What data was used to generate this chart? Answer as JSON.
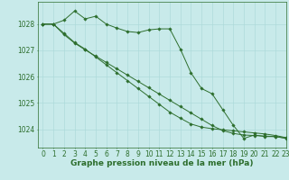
{
  "title": "Graphe pression niveau de la mer (hPa)",
  "background_color": "#c8eaea",
  "grid_color": "#a8d8d8",
  "line_color": "#2d6e2d",
  "title_fontsize": 6.5,
  "tick_fontsize": 5.5,
  "xlim": [
    -0.5,
    23
  ],
  "ylim": [
    1023.3,
    1028.85
  ],
  "yticks": [
    1024,
    1025,
    1026,
    1027,
    1028
  ],
  "xticks": [
    0,
    1,
    2,
    3,
    4,
    5,
    6,
    7,
    8,
    9,
    10,
    11,
    12,
    13,
    14,
    15,
    16,
    17,
    18,
    19,
    20,
    21,
    22,
    23
  ],
  "series1": [
    1028.0,
    1028.0,
    1028.15,
    1028.5,
    1028.2,
    1028.3,
    1028.0,
    1027.85,
    1027.72,
    1027.68,
    1027.78,
    1027.82,
    1027.82,
    1027.05,
    1026.15,
    1025.55,
    1025.35,
    1024.75,
    1024.15,
    1023.65,
    1023.78,
    1023.72,
    1023.72,
    1023.65
  ],
  "series2": [
    1028.0,
    1028.0,
    1027.65,
    1027.3,
    1027.05,
    1026.75,
    1026.45,
    1026.15,
    1025.85,
    1025.55,
    1025.25,
    1024.95,
    1024.65,
    1024.42,
    1024.2,
    1024.08,
    1024.02,
    1023.98,
    1023.94,
    1023.9,
    1023.86,
    1023.82,
    1023.76,
    1023.68
  ],
  "series3": [
    1028.0,
    1028.0,
    1027.6,
    1027.28,
    1027.02,
    1026.78,
    1026.54,
    1026.3,
    1026.06,
    1025.82,
    1025.58,
    1025.34,
    1025.1,
    1024.86,
    1024.62,
    1024.38,
    1024.14,
    1023.95,
    1023.84,
    1023.78,
    1023.76,
    1023.74,
    1023.72,
    1023.66
  ]
}
